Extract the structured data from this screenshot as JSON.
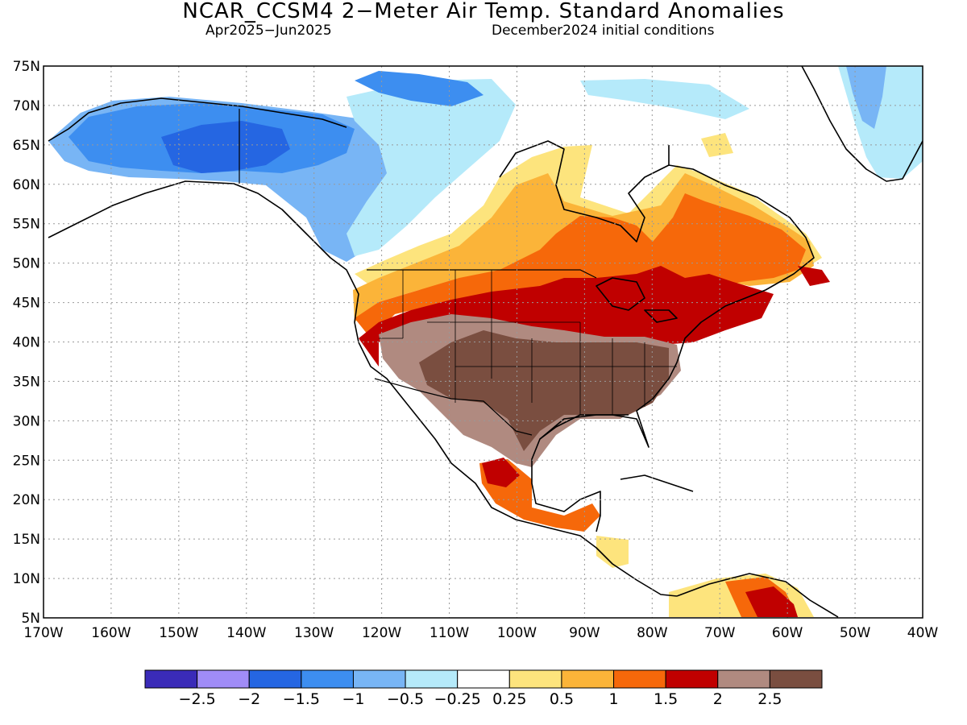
{
  "title": "NCAR_CCSM4 2−Meter Air Temp. Standard Anomalies",
  "subtitle_left": "Apr2025−Jun2025",
  "subtitle_right": "December2024 initial conditions",
  "lat_ticks": [
    "75N",
    "70N",
    "65N",
    "60N",
    "55N",
    "50N",
    "45N",
    "40N",
    "35N",
    "30N",
    "25N",
    "20N",
    "15N",
    "10N",
    "5N"
  ],
  "lon_ticks": [
    "170W",
    "160W",
    "150W",
    "140W",
    "130W",
    "120W",
    "110W",
    "100W",
    "90W",
    "80W",
    "70W",
    "60W",
    "50W",
    "40W"
  ],
  "colorbar": {
    "colors": [
      "#3a2bb8",
      "#a08cf7",
      "#2566e2",
      "#3d8ef0",
      "#78b5f5",
      "#b5eafa",
      "#ffffff",
      "#fde47d",
      "#fbb439",
      "#f6680a",
      "#c00000",
      "#b08a80",
      "#7a4e40"
    ],
    "labels": [
      "−2.5",
      "−2",
      "−1.5",
      "−1",
      "−0.5",
      "−0.25",
      "0.25",
      "0.5",
      "1",
      "1.5",
      "2",
      "2.5"
    ]
  }
}
